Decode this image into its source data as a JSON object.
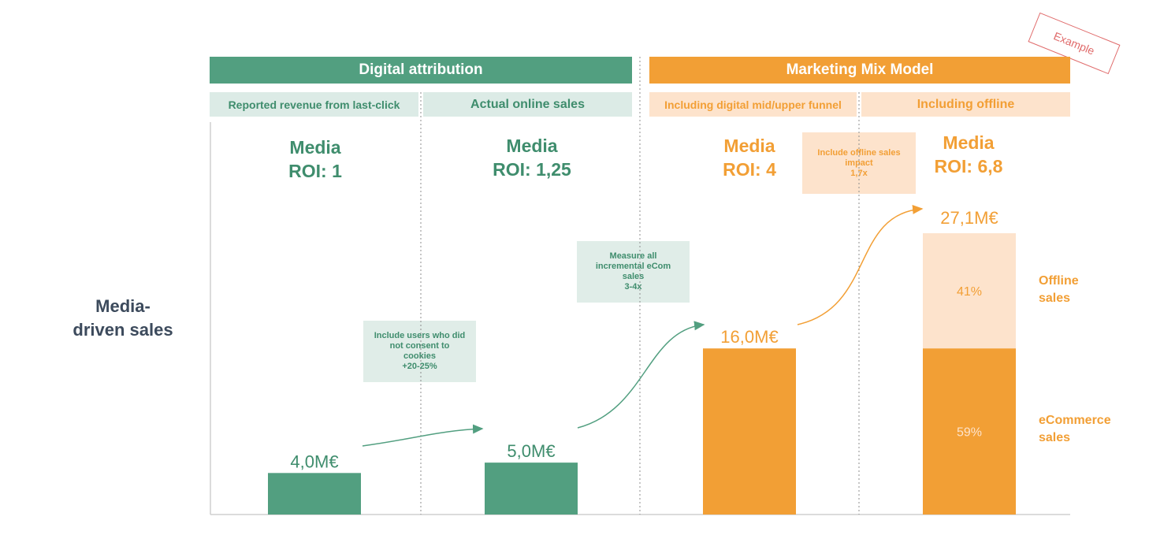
{
  "stamp": "Example",
  "headers": {
    "digital": "Digital attribution",
    "mmm": "Marketing Mix Model"
  },
  "subheaders": [
    "Reported revenue from last-click",
    "Actual online sales",
    "Including digital mid/upper funnel",
    "Including offline"
  ],
  "roi": [
    {
      "line1": "Media",
      "line2": "ROI: 1"
    },
    {
      "line1": "Media",
      "line2": "ROI: 1,25"
    },
    {
      "line1": "Media",
      "line2": "ROI: 4"
    },
    {
      "line1": "Media",
      "line2": "ROI: 6,8"
    }
  ],
  "notes": {
    "cookies": [
      "Include users who did",
      "not consent to",
      "cookies",
      "+20-25%"
    ],
    "ecom": [
      "Measure all",
      "incremental eCom",
      "sales",
      "3-4x"
    ],
    "offline": [
      "Include offline sales",
      "impact",
      "1,7x"
    ]
  },
  "y_axis_label": [
    "Media-",
    "driven sales"
  ],
  "side_labels": {
    "offline": [
      "Offline",
      "sales"
    ],
    "ecommerce": [
      "eCommerce",
      "sales"
    ]
  },
  "colors": {
    "green": "#529f80",
    "orange": "#f29f35",
    "light_orange": "#fde3cc"
  },
  "chart_data": {
    "type": "bar",
    "categories": [
      "Reported revenue from last-click",
      "Actual online sales",
      "Including digital mid/upper funnel",
      "Including offline"
    ],
    "value_labels": [
      "4,0M€",
      "5,0M€",
      "16,0M€",
      "27,1M€"
    ],
    "values": [
      4.0,
      5.0,
      16.0,
      27.1
    ],
    "stacked_last": {
      "ecommerce_value": 16.0,
      "offline_value": 11.1,
      "ecommerce_label": "59%",
      "offline_label": "41%"
    },
    "ylabel": "Media-driven sales",
    "unit": "M€"
  }
}
